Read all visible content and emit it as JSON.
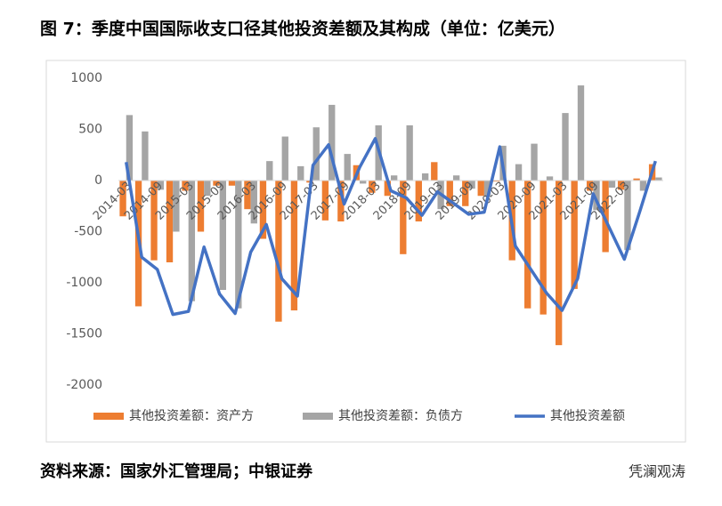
{
  "chart_data": {
    "type": "bar_line",
    "title": "图 7：季度中国国际收支口径其他投资差额及其构成（单位：亿美元）",
    "source": "资料来源：国家外汇管理局；中银证券",
    "watermark": "凭澜观涛",
    "categories": [
      "2014-03",
      null,
      "2014-09",
      null,
      "2015-03",
      null,
      "2015-09",
      null,
      "2016-03",
      null,
      "2016-09",
      null,
      "2017-03",
      null,
      "2017-09",
      null,
      "2018-03",
      null,
      "2018-09",
      null,
      "2019-03",
      null,
      "2019-09",
      null,
      "2020-03",
      null,
      "2020-09",
      null,
      "2021-03",
      null,
      "2021-09",
      null,
      "2022-03",
      null,
      null
    ],
    "series": [
      {
        "name": "其他投资差额：资产方",
        "type": "bar",
        "color": "#ed7d31",
        "values": [
          -350,
          -1230,
          -780,
          -800,
          -100,
          -500,
          -50,
          -50,
          -280,
          -570,
          -1380,
          -1270,
          -20,
          -390,
          -400,
          150,
          -120,
          -150,
          -720,
          -400,
          180,
          -250,
          -250,
          -150,
          -10,
          -780,
          -1250,
          -1310,
          -1610,
          -1060,
          -100,
          -700,
          -90,
          20,
          160
        ]
      },
      {
        "name": "其他投资差额：负债方",
        "type": "bar",
        "color": "#a5a5a5",
        "values": [
          640,
          480,
          -90,
          -500,
          -1180,
          -150,
          -1070,
          -1250,
          -420,
          190,
          430,
          140,
          520,
          740,
          260,
          -30,
          540,
          50,
          540,
          70,
          -280,
          50,
          -80,
          -160,
          340,
          160,
          360,
          40,
          660,
          930,
          -290,
          -70,
          -680,
          -100,
          30
        ]
      },
      {
        "name": "其他投资差额",
        "type": "line",
        "color": "#4472c4",
        "values": [
          180,
          -750,
          -870,
          -1310,
          -1280,
          -650,
          -1110,
          -1300,
          -700,
          -430,
          -960,
          -1130,
          150,
          350,
          -230,
          130,
          410,
          -100,
          -170,
          -340,
          -110,
          -220,
          -330,
          -310,
          330,
          -640,
          -870,
          -1100,
          -1270,
          -960,
          -130,
          -450,
          -770,
          -300,
          190
        ]
      }
    ],
    "ylim": [
      -2000,
      1000
    ],
    "yticks": [
      1000,
      500,
      0,
      -500,
      -1000,
      -1500,
      -2000
    ],
    "grid": false
  }
}
